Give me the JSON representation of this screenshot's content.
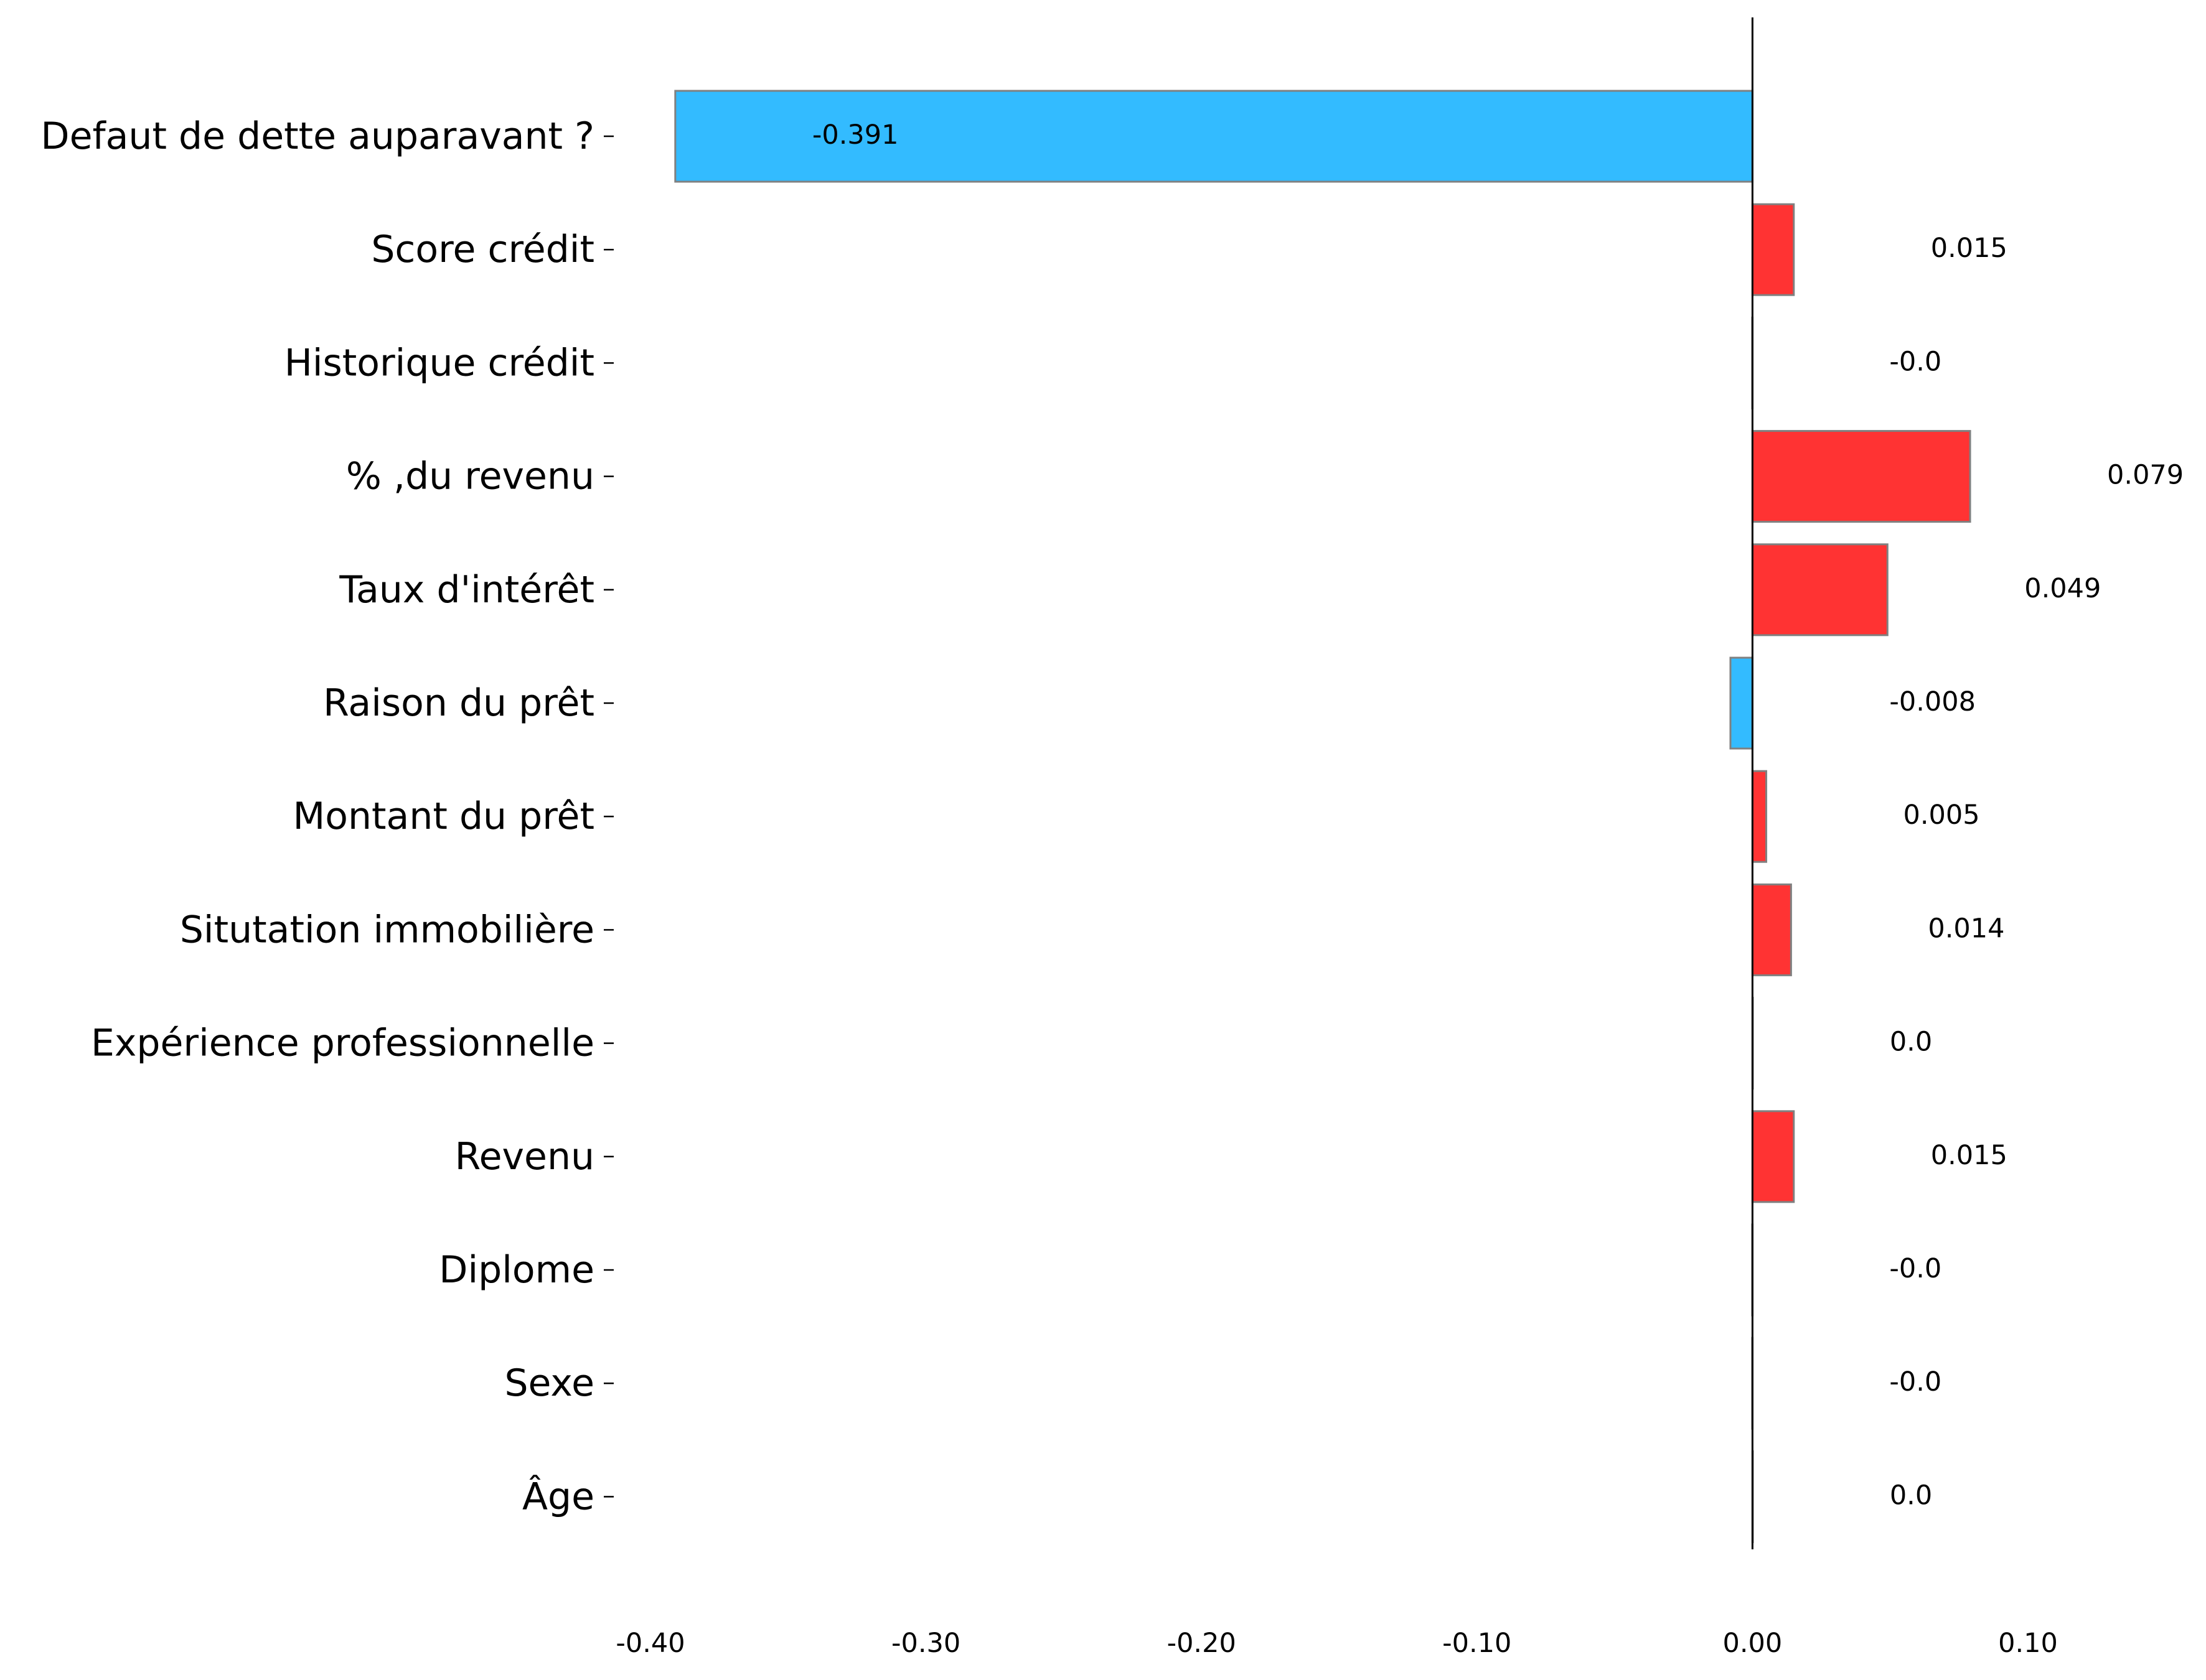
{
  "colors": {
    "positive": "#ff3333",
    "negative": "#33bbff",
    "bar_edge": "#808080",
    "zero_line": "#000000"
  },
  "chart_data": {
    "type": "bar",
    "orientation": "horizontal",
    "title": "",
    "xlabel": "",
    "ylabel": "",
    "xlim": [
      -0.4,
      0.1
    ],
    "x_ticks": [
      "-0.40",
      "-0.30",
      "-0.20",
      "-0.10",
      "0.00",
      "0.10"
    ],
    "x_tick_values": [
      -0.4,
      -0.3,
      -0.2,
      -0.1,
      0.0,
      0.1
    ],
    "grid": false,
    "categories": [
      "Defaut de dette auparavant ?",
      "Score crédit",
      "Historique crédit",
      "% ,du revenu",
      "Taux d'intérêt",
      "Raison du prêt",
      "Montant du prêt",
      "Situtation immobilière",
      "Expérience professionnelle",
      "Revenu",
      "Diplome",
      "Sexe",
      "Âge"
    ],
    "values": [
      -0.391,
      0.015,
      -0.0001,
      0.079,
      0.049,
      -0.008,
      0.005,
      0.014,
      0.0001,
      0.015,
      -0.0001,
      -0.0001,
      0.0001
    ],
    "value_labels": [
      "-0.391",
      "0.015",
      "-0.0",
      "0.079",
      "0.049",
      "-0.008",
      "0.005",
      "0.014",
      "0.0",
      "0.015",
      "-0.0",
      "-0.0",
      "0.0"
    ]
  }
}
